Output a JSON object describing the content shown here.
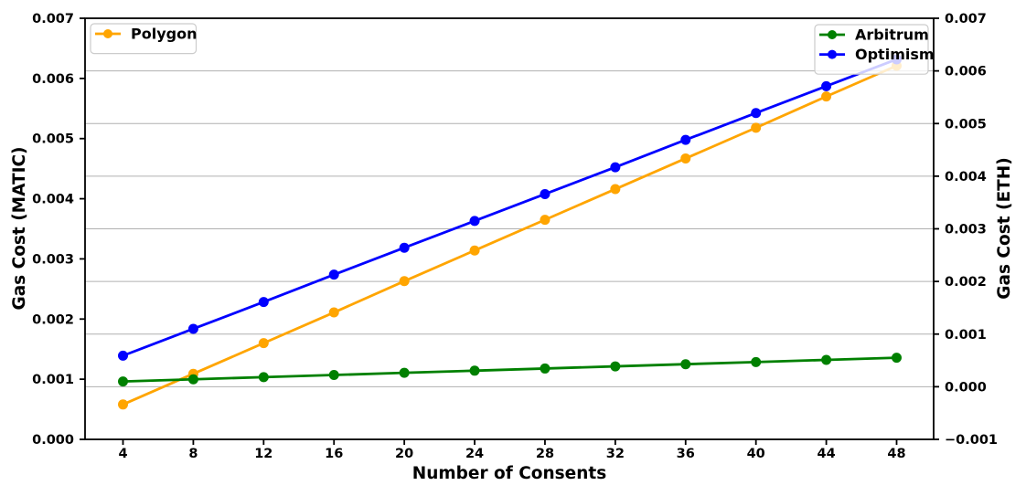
{
  "chart_data": {
    "type": "line",
    "title": "",
    "xlabel": "Number of Consents",
    "x": [
      4,
      8,
      12,
      16,
      20,
      24,
      28,
      32,
      36,
      40,
      44,
      48
    ],
    "x_tick_labels": [
      "4",
      "8",
      "12",
      "16",
      "20",
      "24",
      "28",
      "32",
      "36",
      "40",
      "44",
      "48"
    ],
    "left_axis": {
      "label": "Gas Cost (MATIC)",
      "unit": "MATIC",
      "min": 0.0,
      "max": 0.007,
      "ticks": [
        0.0,
        0.001,
        0.002,
        0.003,
        0.004,
        0.005,
        0.006,
        0.007
      ],
      "tick_decimals": 3
    },
    "right_axis": {
      "label": "Gas Cost (ETH)",
      "unit": "ETH",
      "min": -0.001,
      "max": 0.007,
      "ticks": [
        -0.001,
        0.0,
        0.001,
        0.002,
        0.003,
        0.004,
        0.005,
        0.006,
        0.007
      ],
      "tick_decimals": 3
    },
    "grid": {
      "horizontal": true,
      "vertical": false,
      "follows_axis": "right",
      "color": "#b0b0b0"
    },
    "series": [
      {
        "name": "Polygon",
        "color": "#FFA500",
        "axis": "left",
        "marker": "circle",
        "values": [
          0.00058,
          0.00109,
          0.0016,
          0.00211,
          0.00263,
          0.00314,
          0.00365,
          0.00416,
          0.00467,
          0.00518,
          0.0057,
          0.00621
        ]
      },
      {
        "name": "Arbitrum",
        "color": "#008000",
        "axis": "right",
        "marker": "circle",
        "values": [
          0.0001,
          0.000141,
          0.000182,
          0.000223,
          0.000264,
          0.000305,
          0.000346,
          0.000387,
          0.000428,
          0.000469,
          0.00051,
          0.000551
        ]
      },
      {
        "name": "Optimism",
        "color": "#0000FF",
        "axis": "right",
        "marker": "circle",
        "values": [
          0.00059,
          0.0011,
          0.00161,
          0.00213,
          0.00264,
          0.00315,
          0.00366,
          0.00417,
          0.00469,
          0.0052,
          0.00571,
          0.00622
        ]
      }
    ],
    "legends": [
      {
        "position": "top-left",
        "entries": [
          "Polygon"
        ]
      },
      {
        "position": "top-right",
        "entries": [
          "Arbitrum",
          "Optimism"
        ]
      }
    ],
    "legend_style": {
      "background": "rgba(255,255,255,0.8)",
      "border_color": "#cccccc"
    }
  }
}
